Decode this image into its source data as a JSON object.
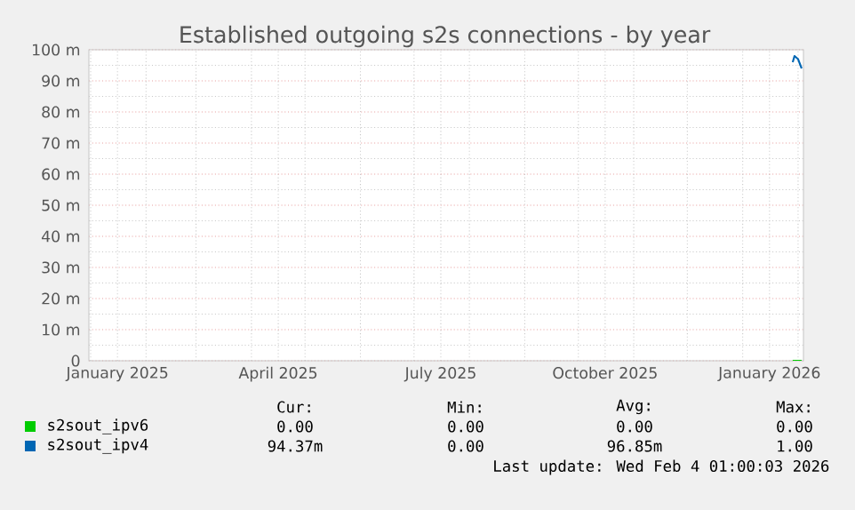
{
  "chart_data": {
    "type": "line",
    "title": "Established outgoing s2s connections - by year",
    "xlim": [
      "2024-12-31",
      "2026-02-04"
    ],
    "xticks": [
      {
        "value": "2025-01-16",
        "label": "January 2025"
      },
      {
        "value": "2025-04-16",
        "label": "April 2025"
      },
      {
        "value": "2025-07-16",
        "label": "July 2025"
      },
      {
        "value": "2025-10-16",
        "label": "October 2025"
      },
      {
        "value": "2026-01-16",
        "label": "January 2026"
      },
      {
        "value": "2025-01-01",
        "label": null
      },
      {
        "value": "2025-02-01",
        "label": null
      },
      {
        "value": "2025-03-01",
        "label": null
      },
      {
        "value": "2025-04-01",
        "label": null
      },
      {
        "value": "2025-05-01",
        "label": null
      },
      {
        "value": "2025-06-01",
        "label": null
      },
      {
        "value": "2025-07-01",
        "label": null
      },
      {
        "value": "2025-08-01",
        "label": null
      },
      {
        "value": "2025-09-01",
        "label": null
      },
      {
        "value": "2025-10-01",
        "label": null
      },
      {
        "value": "2025-11-01",
        "label": null
      },
      {
        "value": "2025-12-01",
        "label": null
      },
      {
        "value": "2026-01-01",
        "label": null
      },
      {
        "value": "2026-02-01",
        "label": null
      }
    ],
    "ylim": [
      0,
      100
    ],
    "yticks": [
      0,
      {
        "value": 10,
        "label": "10 m"
      },
      {
        "value": 20,
        "label": "20 m"
      },
      {
        "value": 30,
        "label": "30 m"
      },
      {
        "value": 40,
        "label": "40 m"
      },
      {
        "value": 50,
        "label": "50 m"
      },
      {
        "value": 60,
        "label": "60 m"
      },
      {
        "value": 70,
        "label": "70 m"
      },
      {
        "value": 80,
        "label": "80 m"
      },
      {
        "value": 90,
        "label": "90 m"
      },
      {
        "value": 100,
        "label": "100 m"
      }
    ],
    "grid": true,
    "legend": "bottom",
    "series": [
      {
        "name": "s2sout_ipv6",
        "color": "#00cc00",
        "x": [
          "2026-01-29",
          "2026-01-30",
          "2026-02-01",
          "2026-02-03"
        ],
        "values": [
          0,
          0,
          0,
          0
        ]
      },
      {
        "name": "s2sout_ipv4",
        "color": "#0066b3",
        "x": [
          "2026-01-29",
          "2026-01-30",
          "2026-02-01",
          "2026-02-03"
        ],
        "values": [
          96,
          98,
          97,
          94
        ]
      }
    ],
    "annotations": [
      "Cur:",
      "Min:",
      "Avg:",
      "Max:",
      "0.00",
      "0.00",
      "0.00",
      "0.00",
      "94.37m",
      "0.00",
      "96.85m",
      "1.00",
      "Last update: Wed Feb  4 01:00:03 2026"
    ]
  }
}
